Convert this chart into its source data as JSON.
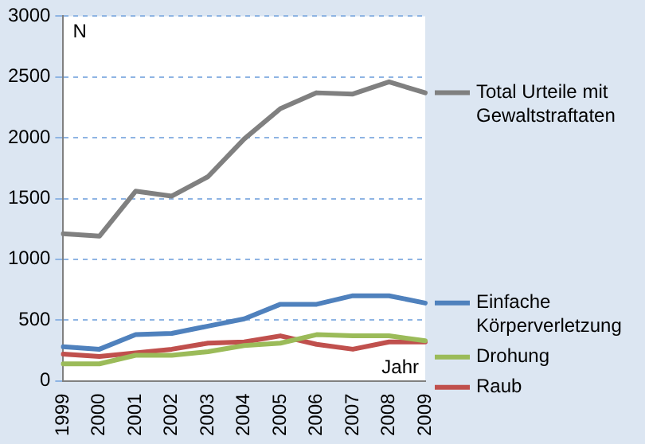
{
  "chart_data": {
    "type": "line",
    "xlabel": "Jahr",
    "ylabel": "N",
    "categories": [
      "1999",
      "2000",
      "2001",
      "2002",
      "2003",
      "2004",
      "2005",
      "2006",
      "2007",
      "2008",
      "2009"
    ],
    "series": [
      {
        "name": "Total Urteile mit Gewaltstraftaten",
        "color": "#808080",
        "values": [
          1210,
          1190,
          1560,
          1520,
          1680,
          1990,
          2240,
          2370,
          2360,
          2460,
          2370
        ]
      },
      {
        "name": "Einfache Körperverletzung",
        "color": "#4f81bd",
        "values": [
          280,
          260,
          380,
          390,
          450,
          510,
          630,
          630,
          700,
          700,
          640
        ]
      },
      {
        "name": "Drohung",
        "color": "#9bbb59",
        "values": [
          140,
          140,
          210,
          210,
          240,
          290,
          310,
          380,
          370,
          370,
          330
        ]
      },
      {
        "name": "Raub",
        "color": "#c0504d",
        "values": [
          220,
          200,
          230,
          260,
          310,
          320,
          370,
          300,
          260,
          320,
          320
        ]
      }
    ],
    "ylim": [
      0,
      3000
    ],
    "yticks": [
      0,
      500,
      1000,
      1500,
      2000,
      2500,
      3000
    ],
    "grid": "y",
    "legend": "right",
    "marker": "none",
    "line_style": "solid"
  }
}
